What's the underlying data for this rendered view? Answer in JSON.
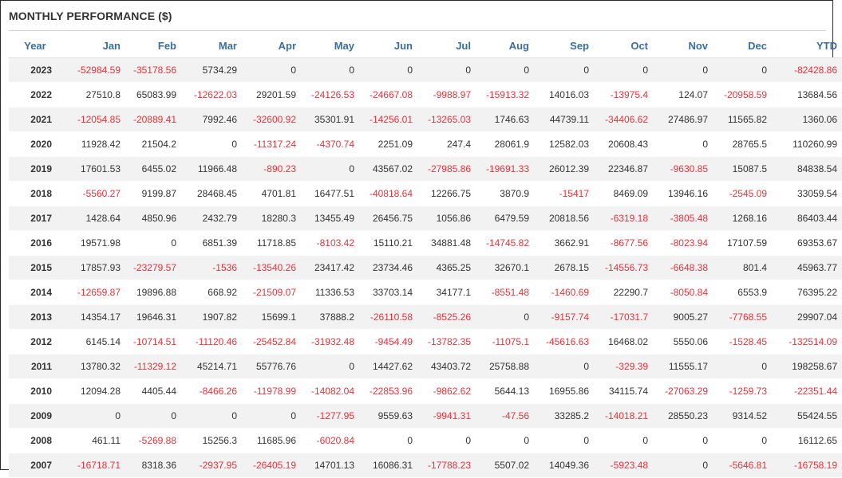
{
  "title": "MONTHLY PERFORMANCE ($)",
  "colors": {
    "header_text": "#3a6e9f",
    "negative": "#e8323a",
    "positive": "#333333",
    "stripe": "#f2f2f2"
  },
  "columns": [
    "Year",
    "Jan",
    "Feb",
    "Mar",
    "Apr",
    "May",
    "Jun",
    "Jul",
    "Aug",
    "Sep",
    "Oct",
    "Nov",
    "Dec",
    "YTD"
  ],
  "rows": [
    [
      "2023",
      "-52984.59",
      "-35178.56",
      "5734.29",
      "0",
      "0",
      "0",
      "0",
      "0",
      "0",
      "0",
      "0",
      "0",
      "-82428.86"
    ],
    [
      "2022",
      "27510.8",
      "65083.99",
      "-12622.03",
      "29201.59",
      "-24126.53",
      "-24667.08",
      "-9988.97",
      "-15913.32",
      "14016.03",
      "-13975.4",
      "124.07",
      "-20958.59",
      "13684.56"
    ],
    [
      "2021",
      "-12054.85",
      "-20889.41",
      "7992.46",
      "-32600.92",
      "35301.91",
      "-14256.01",
      "-13265.03",
      "1746.63",
      "44739.11",
      "-34406.62",
      "27486.97",
      "11565.82",
      "1360.06"
    ],
    [
      "2020",
      "11928.42",
      "21504.2",
      "0",
      "-11317.24",
      "-4370.74",
      "2251.09",
      "247.4",
      "28061.9",
      "12582.03",
      "20608.43",
      "0",
      "28765.5",
      "110260.99"
    ],
    [
      "2019",
      "17601.53",
      "6455.02",
      "11966.48",
      "-890.23",
      "0",
      "43567.02",
      "-27985.86",
      "-19691.33",
      "26012.39",
      "22346.87",
      "-9630.85",
      "15087.5",
      "84838.54"
    ],
    [
      "2018",
      "-5560.27",
      "9199.87",
      "28468.45",
      "4701.81",
      "16477.51",
      "-40818.64",
      "12266.75",
      "3870.9",
      "-15417",
      "8469.09",
      "13946.16",
      "-2545.09",
      "33059.54"
    ],
    [
      "2017",
      "1428.64",
      "4850.96",
      "2432.79",
      "18280.3",
      "13455.49",
      "26456.75",
      "1056.86",
      "6479.59",
      "20818.56",
      "-6319.18",
      "-3805.48",
      "1268.16",
      "86403.44"
    ],
    [
      "2016",
      "19571.98",
      "0",
      "6851.39",
      "11718.85",
      "-8103.42",
      "15110.21",
      "34881.48",
      "-14745.82",
      "3662.91",
      "-8677.56",
      "-8023.94",
      "17107.59",
      "69353.67"
    ],
    [
      "2015",
      "17857.93",
      "-23279.57",
      "-1536",
      "-13540.26",
      "23417.42",
      "23734.46",
      "4365.25",
      "32670.1",
      "2678.15",
      "-14556.73",
      "-6648.38",
      "801.4",
      "45963.77"
    ],
    [
      "2014",
      "-12659.87",
      "19896.88",
      "668.92",
      "-21509.07",
      "11336.53",
      "33703.14",
      "34177.1",
      "-8551.48",
      "-1460.69",
      "22290.7",
      "-8050.84",
      "6553.9",
      "76395.22"
    ],
    [
      "2013",
      "14354.17",
      "19646.31",
      "1907.82",
      "15699.1",
      "37888.2",
      "-26110.58",
      "-8525.26",
      "0",
      "-9157.74",
      "-17031.7",
      "9005.27",
      "-7768.55",
      "29907.04"
    ],
    [
      "2012",
      "6145.14",
      "-10714.51",
      "-11120.46",
      "-25452.84",
      "-31932.48",
      "-9454.49",
      "-13782.35",
      "-11075.1",
      "-45616.63",
      "16468.02",
      "5550.06",
      "-1528.45",
      "-132514.09"
    ],
    [
      "2011",
      "13780.32",
      "-11329.12",
      "45214.71",
      "55776.76",
      "0",
      "14427.62",
      "43403.72",
      "25758.88",
      "0",
      "-329.39",
      "11555.17",
      "0",
      "198258.67"
    ],
    [
      "2010",
      "12094.28",
      "4405.44",
      "-8466.26",
      "-11978.99",
      "-14082.04",
      "-22853.96",
      "-9862.62",
      "5644.13",
      "16955.86",
      "34115.74",
      "-27063.29",
      "-1259.73",
      "-22351.44"
    ],
    [
      "2009",
      "0",
      "0",
      "0",
      "0",
      "-1277.95",
      "9559.63",
      "-9941.31",
      "-47.56",
      "33285.2",
      "-14018.21",
      "28550.23",
      "9314.52",
      "55424.55"
    ],
    [
      "2008",
      "461.11",
      "-5269.88",
      "15256.3",
      "11685.96",
      "-6020.84",
      "0",
      "0",
      "0",
      "0",
      "0",
      "0",
      "0",
      "16112.65"
    ],
    [
      "2007",
      "-16718.71",
      "8318.36",
      "-2937.95",
      "-26405.19",
      "14701.13",
      "16086.31",
      "-17788.23",
      "5507.02",
      "14049.36",
      "-5923.48",
      "0",
      "-5646.81",
      "-16758.19"
    ]
  ]
}
